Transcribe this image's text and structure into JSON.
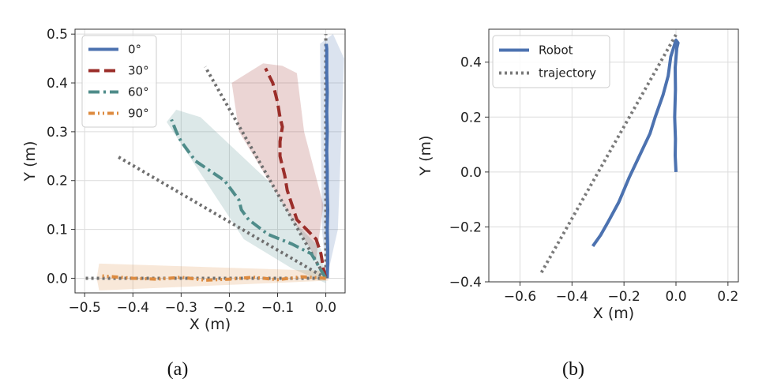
{
  "chart_data": [
    {
      "type": "line",
      "caption": "(a)",
      "xlabel": "X (m)",
      "ylabel": "Y (m)",
      "xlim": [
        -0.52,
        0.04
      ],
      "ylim": [
        -0.03,
        0.51
      ],
      "xticks": [
        -0.5,
        -0.4,
        -0.3,
        -0.2,
        -0.1,
        0.0
      ],
      "xtick_labels": [
        "−0.5",
        "−0.4",
        "−0.3",
        "−0.2",
        "−0.1",
        "0.0"
      ],
      "yticks": [
        0.0,
        0.1,
        0.2,
        0.3,
        0.4,
        0.5
      ],
      "ytick_labels": [
        "0.0",
        "0.1",
        "0.2",
        "0.3",
        "0.4",
        "0.5"
      ],
      "grid": true,
      "legend_position": "top-left",
      "reference_lines": [
        {
          "style": "dotted",
          "color": "#6f6f6f",
          "x": [
            0.0,
            0.0
          ],
          "y": [
            0.0,
            0.5
          ]
        },
        {
          "style": "dotted",
          "color": "#6f6f6f",
          "x": [
            0.0,
            -0.25
          ],
          "y": [
            0.0,
            0.433
          ]
        },
        {
          "style": "dotted",
          "color": "#6f6f6f",
          "x": [
            0.0,
            -0.433
          ],
          "y": [
            0.0,
            0.25
          ]
        },
        {
          "style": "dotted",
          "color": "#6f6f6f",
          "x": [
            0.0,
            -0.5
          ],
          "y": [
            0.0,
            0.0
          ]
        }
      ],
      "series": [
        {
          "name": "0°",
          "color": "#4c72b0",
          "dash": "solid",
          "x": [
            0.003,
            0.004,
            0.004,
            0.003,
            0.004,
            0.003,
            0.003,
            0.002,
            0.003,
            0.002,
            0.003,
            0.002,
            0.002,
            0.002,
            0.001
          ],
          "y": [
            0.0,
            0.03,
            0.06,
            0.1,
            0.14,
            0.18,
            0.22,
            0.26,
            0.3,
            0.34,
            0.38,
            0.42,
            0.45,
            0.47,
            0.48
          ],
          "band": {
            "x": [
              0.002,
              0.025,
              0.038,
              0.015,
              -0.012,
              -0.008
            ],
            "y": [
              0.0,
              0.1,
              0.45,
              0.5,
              0.48,
              0.1
            ]
          }
        },
        {
          "name": "30°",
          "color": "#9b2e2a",
          "dash": "dashed",
          "x": [
            0.0,
            -0.005,
            -0.01,
            -0.02,
            -0.04,
            -0.06,
            -0.07,
            -0.08,
            -0.085,
            -0.09,
            -0.095,
            -0.095,
            -0.09,
            -0.095,
            -0.1,
            -0.105,
            -0.11,
            -0.12,
            -0.125
          ],
          "y": [
            0.0,
            0.02,
            0.05,
            0.08,
            0.1,
            0.12,
            0.15,
            0.18,
            0.21,
            0.23,
            0.25,
            0.28,
            0.31,
            0.33,
            0.36,
            0.38,
            0.4,
            0.42,
            0.43
          ],
          "band": {
            "x": [
              -0.02,
              -0.005,
              -0.045,
              -0.06,
              -0.09,
              -0.13,
              -0.195,
              -0.18
            ],
            "y": [
              0.04,
              0.15,
              0.3,
              0.42,
              0.435,
              0.44,
              0.4,
              0.3
            ]
          }
        },
        {
          "name": "60°",
          "color": "#4f8c8a",
          "dash": "dashdot",
          "x": [
            0.0,
            -0.03,
            -0.07,
            -0.12,
            -0.16,
            -0.175,
            -0.18,
            -0.195,
            -0.21,
            -0.24,
            -0.27,
            -0.285,
            -0.3,
            -0.31,
            -0.32
          ],
          "y": [
            0.0,
            0.05,
            0.07,
            0.09,
            0.12,
            0.14,
            0.16,
            0.18,
            0.2,
            0.22,
            0.24,
            0.26,
            0.28,
            0.3,
            0.325
          ],
          "band": {
            "x": [
              0.0,
              -0.07,
              -0.17,
              -0.33,
              -0.31,
              -0.26,
              -0.12,
              -0.06,
              -0.01
            ],
            "y": [
              -0.01,
              0.02,
              0.08,
              0.32,
              0.345,
              0.33,
              0.2,
              0.11,
              0.06
            ]
          }
        },
        {
          "name": "90°",
          "color": "#dd8b40",
          "dash": "dashdotdot",
          "x": [
            0.0,
            -0.05,
            -0.1,
            -0.15,
            -0.2,
            -0.25,
            -0.3,
            -0.35,
            -0.4,
            -0.44,
            -0.465
          ],
          "y": [
            0.0,
            0.003,
            -0.003,
            0.002,
            -0.002,
            -0.004,
            0.002,
            -0.002,
            0.0,
            0.003,
            0.005
          ],
          "band": {
            "x": [
              0.005,
              -0.47,
              -0.475,
              -0.47,
              0.005
            ],
            "y": [
              -0.005,
              -0.025,
              0.0,
              0.03,
              0.015
            ]
          }
        }
      ]
    },
    {
      "type": "line",
      "caption": "(b)",
      "xlabel": "X (m)",
      "ylabel": "Y (m)",
      "xlim": [
        -0.72,
        0.24
      ],
      "ylim": [
        -0.4,
        0.52
      ],
      "xticks": [
        -0.6,
        -0.4,
        -0.2,
        0.0,
        0.2
      ],
      "xtick_labels": [
        "−0.6",
        "−0.4",
        "−0.2",
        "0.0",
        "0.2"
      ],
      "yticks": [
        -0.4,
        -0.2,
        0.0,
        0.2,
        0.4
      ],
      "ytick_labels": [
        "−0.4",
        "−0.2",
        "0.0",
        "0.2",
        "0.4"
      ],
      "grid": true,
      "legend_position": "top-left",
      "series": [
        {
          "name": "Robot",
          "color": "#4c72b0",
          "dash": "solid",
          "x": [
            0.0,
            -0.003,
            -0.002,
            -0.005,
            -0.002,
            -0.003,
            0.003,
            0.008,
            0.0,
            -0.02,
            -0.03,
            -0.05,
            -0.08,
            -0.1,
            -0.14,
            -0.18,
            -0.22,
            -0.26,
            -0.29,
            -0.32
          ],
          "y": [
            0.0,
            0.06,
            0.12,
            0.2,
            0.3,
            0.38,
            0.45,
            0.47,
            0.48,
            0.42,
            0.35,
            0.28,
            0.2,
            0.14,
            0.06,
            -0.02,
            -0.11,
            -0.18,
            -0.23,
            -0.27
          ]
        },
        {
          "name": "trajectory",
          "color": "#7a7a7a",
          "dash": "dotted",
          "x": [
            0.0,
            -0.52
          ],
          "y": [
            0.5,
            -0.37
          ]
        }
      ]
    }
  ]
}
